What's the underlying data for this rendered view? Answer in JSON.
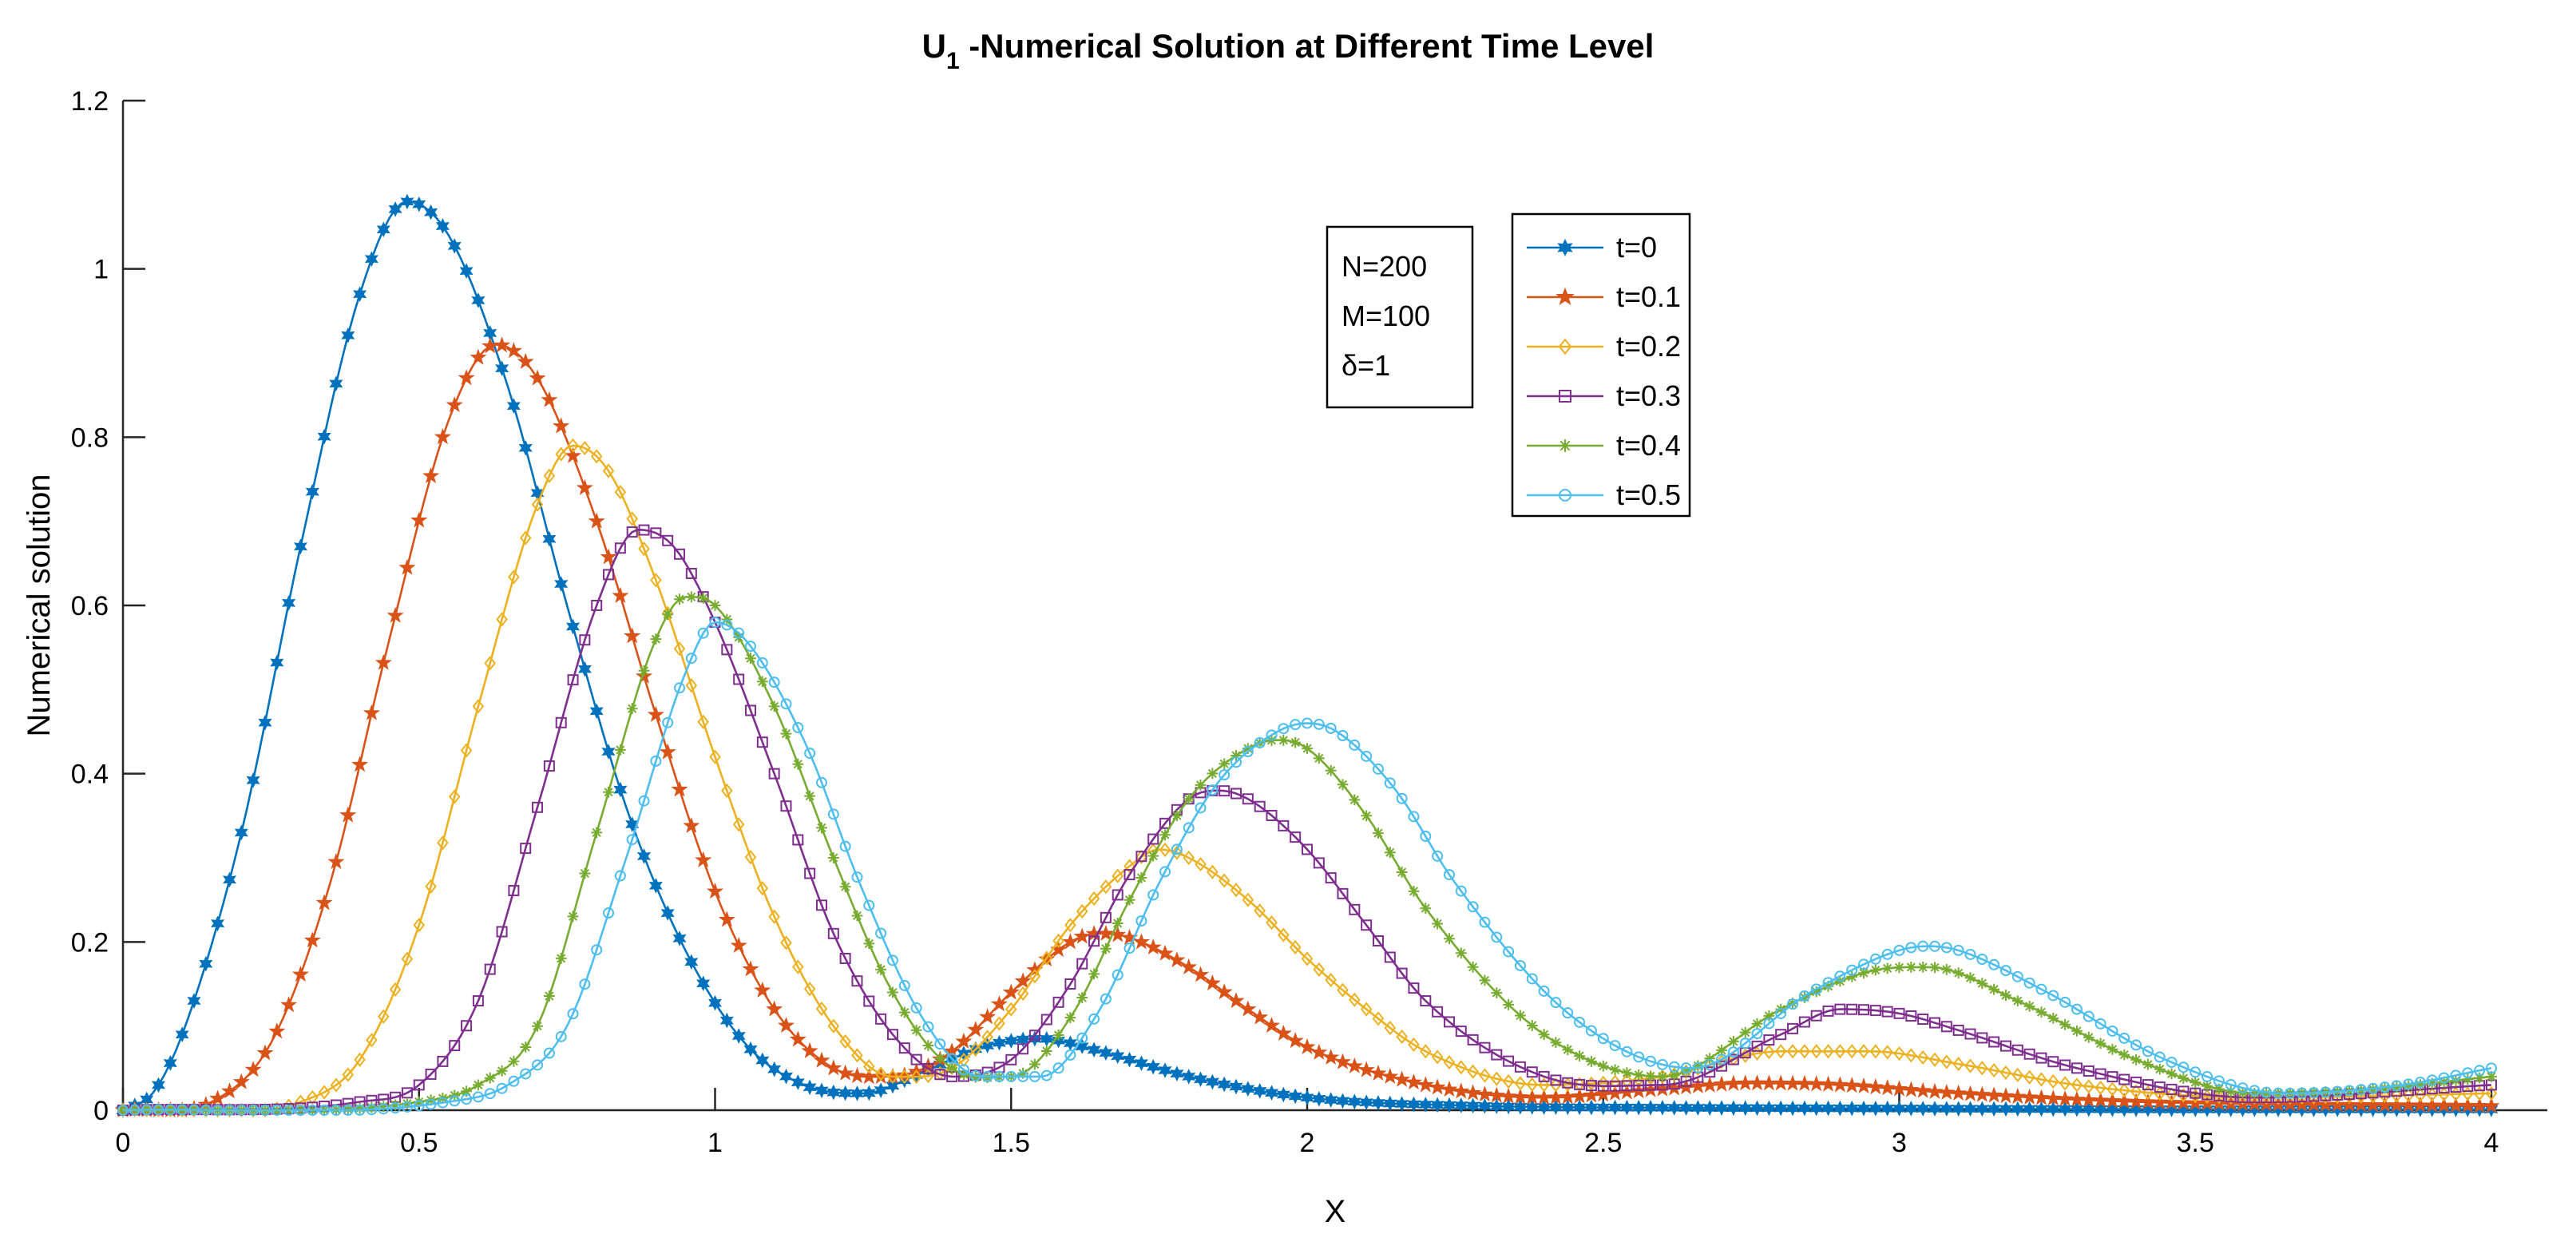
{
  "chart_data": {
    "type": "line",
    "title_main": "U",
    "title_sub": "1",
    "title_rest": " -Numerical Solution at Different Time Level",
    "xlabel": "X",
    "ylabel": "Numerical solution",
    "xlim": [
      0,
      4
    ],
    "ylim": [
      0,
      1.2
    ],
    "xticks": [
      "0",
      "0.5",
      "1",
      "1.5",
      "2",
      "2.5",
      "3",
      "3.5",
      "4"
    ],
    "yticks": [
      "0",
      "0.2",
      "0.4",
      "0.6",
      "0.8",
      "1",
      "1.2"
    ],
    "grid": false,
    "legend_position": "top-right",
    "annotation": {
      "lines": [
        "N=200",
        "M=100",
        "δ=1"
      ]
    },
    "series": [
      {
        "name": "t=0",
        "color": "#0072BD",
        "marker": "hexagram",
        "x": [
          0,
          0.05,
          0.1,
          0.2,
          0.3,
          0.4,
          0.48,
          0.55,
          0.65,
          0.75,
          0.85,
          0.95,
          1.05,
          1.15,
          1.25,
          1.35,
          1.45,
          1.55,
          1.65,
          1.8,
          2.0,
          2.3,
          2.6,
          3.0,
          3.5,
          4.0
        ],
        "y": [
          0,
          0.02,
          0.09,
          0.33,
          0.67,
          0.97,
          1.08,
          1.04,
          0.86,
          0.6,
          0.36,
          0.19,
          0.08,
          0.03,
          0.02,
          0.045,
          0.075,
          0.085,
          0.07,
          0.04,
          0.015,
          0.005,
          0.003,
          0.002,
          0.001,
          0.001
        ]
      },
      {
        "name": "t=0.1",
        "color": "#D95319",
        "marker": "pentagram",
        "x": [
          0,
          0.15,
          0.25,
          0.35,
          0.45,
          0.55,
          0.63,
          0.7,
          0.8,
          0.9,
          1.0,
          1.1,
          1.2,
          1.3,
          1.4,
          1.5,
          1.6,
          1.65,
          1.7,
          1.8,
          1.9,
          2.0,
          2.2,
          2.4,
          2.6,
          2.75,
          2.9,
          3.1,
          3.4,
          4.0
        ],
        "y": [
          0,
          0.01,
          0.08,
          0.27,
          0.56,
          0.82,
          0.91,
          0.87,
          0.7,
          0.47,
          0.26,
          0.12,
          0.05,
          0.04,
          0.07,
          0.14,
          0.2,
          0.21,
          0.205,
          0.17,
          0.12,
          0.075,
          0.03,
          0.015,
          0.025,
          0.032,
          0.03,
          0.02,
          0.01,
          0.005
        ]
      },
      {
        "name": "t=0.2",
        "color": "#EDB120",
        "marker": "diamond",
        "x": [
          0,
          0.3,
          0.4,
          0.5,
          0.6,
          0.7,
          0.76,
          0.82,
          0.9,
          1.0,
          1.1,
          1.2,
          1.3,
          1.4,
          1.5,
          1.6,
          1.7,
          1.75,
          1.8,
          1.9,
          2.0,
          2.1,
          2.2,
          2.4,
          2.6,
          2.8,
          2.95,
          3.1,
          3.3,
          3.6,
          4.0
        ],
        "y": [
          0,
          0.01,
          0.06,
          0.22,
          0.48,
          0.72,
          0.79,
          0.76,
          0.63,
          0.42,
          0.23,
          0.1,
          0.04,
          0.05,
          0.12,
          0.22,
          0.29,
          0.31,
          0.3,
          0.25,
          0.18,
          0.12,
          0.07,
          0.03,
          0.04,
          0.07,
          0.07,
          0.055,
          0.03,
          0.015,
          0.02
        ]
      },
      {
        "name": "t=0.3",
        "color": "#7E2F8E",
        "marker": "square",
        "x": [
          0,
          0.4,
          0.5,
          0.6,
          0.7,
          0.8,
          0.87,
          0.93,
          1.0,
          1.1,
          1.2,
          1.3,
          1.4,
          1.5,
          1.6,
          1.7,
          1.8,
          1.85,
          1.9,
          2.0,
          2.1,
          2.2,
          2.4,
          2.6,
          2.8,
          2.9,
          3.0,
          3.1,
          3.3,
          3.6,
          4.0
        ],
        "y": [
          0,
          0.01,
          0.03,
          0.13,
          0.36,
          0.6,
          0.69,
          0.67,
          0.58,
          0.4,
          0.21,
          0.09,
          0.04,
          0.06,
          0.15,
          0.28,
          0.37,
          0.38,
          0.37,
          0.31,
          0.22,
          0.13,
          0.04,
          0.03,
          0.09,
          0.12,
          0.115,
          0.095,
          0.05,
          0.015,
          0.03
        ]
      },
      {
        "name": "t=0.4",
        "color": "#77AC30",
        "marker": "asterisk",
        "x": [
          0,
          0.5,
          0.6,
          0.7,
          0.8,
          0.9,
          0.95,
          1.0,
          1.1,
          1.2,
          1.3,
          1.4,
          1.5,
          1.6,
          1.7,
          1.8,
          1.9,
          1.95,
          2.0,
          2.1,
          2.2,
          2.4,
          2.6,
          2.8,
          2.95,
          3.05,
          3.2,
          3.4,
          3.6,
          3.8,
          4.0
        ],
        "y": [
          0,
          0.01,
          0.03,
          0.1,
          0.33,
          0.56,
          0.61,
          0.6,
          0.48,
          0.3,
          0.14,
          0.05,
          0.04,
          0.11,
          0.25,
          0.37,
          0.43,
          0.44,
          0.43,
          0.35,
          0.24,
          0.09,
          0.04,
          0.12,
          0.165,
          0.17,
          0.13,
          0.06,
          0.02,
          0.025,
          0.04
        ]
      },
      {
        "name": "t=0.5",
        "color": "#4DBEEE",
        "marker": "circle",
        "x": [
          0,
          0.55,
          0.65,
          0.75,
          0.85,
          0.95,
          1.0,
          1.05,
          1.15,
          1.25,
          1.35,
          1.45,
          1.55,
          1.65,
          1.75,
          1.85,
          1.95,
          2.0,
          2.05,
          2.15,
          2.25,
          2.45,
          2.65,
          2.85,
          3.0,
          3.05,
          3.1,
          3.25,
          3.45,
          3.65,
          3.85,
          4.0
        ],
        "y": [
          0,
          0.01,
          0.03,
          0.1,
          0.3,
          0.52,
          0.58,
          0.56,
          0.44,
          0.26,
          0.11,
          0.04,
          0.04,
          0.12,
          0.27,
          0.39,
          0.45,
          0.46,
          0.45,
          0.38,
          0.27,
          0.11,
          0.05,
          0.14,
          0.19,
          0.195,
          0.19,
          0.14,
          0.06,
          0.02,
          0.03,
          0.05
        ]
      }
    ]
  }
}
